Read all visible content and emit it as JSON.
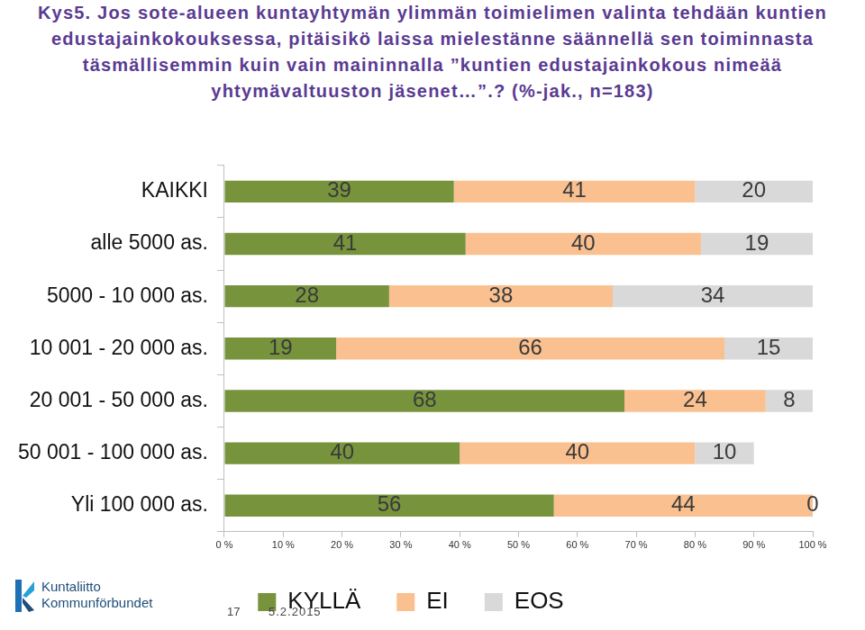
{
  "chart_data": {
    "type": "bar",
    "orientation": "horizontal",
    "stacked": true,
    "data_labels": true,
    "grid": false,
    "legend": "bottom",
    "title": "Kys5. Jos sote-alueen kuntayhtymän ylimmän toimielimen valinta tehdään kuntien edustajainkokouksessa, pitäisikö laissa mielestänne säännellä sen toiminnasta täsmällisemmin kuin vain maininnalla ”kuntien edustajainkokous nimeää yhtymävaltuuston jäsenet…”.? (%-jak., n=183)",
    "categories": [
      "KAIKKI",
      "alle 5000 as.",
      "5000 - 10 000 as.",
      "10 001 - 20 000 as.",
      "20 001 - 50 000 as.",
      "50 001 - 100 000 as.",
      "Yli 100 000 as."
    ],
    "series": [
      {
        "name": "KYLLÄ",
        "color": "#77933c",
        "values": [
          39,
          41,
          28,
          19,
          68,
          40,
          56
        ]
      },
      {
        "name": "EI",
        "color": "#fac090",
        "values": [
          41,
          40,
          38,
          66,
          24,
          40,
          44
        ]
      },
      {
        "name": "EOS",
        "color": "#d9d9d9",
        "values": [
          20,
          19,
          34,
          15,
          8,
          10,
          0
        ]
      }
    ],
    "xlim": [
      0,
      100
    ],
    "xticks": [
      {
        "value": 0,
        "label": "0 %"
      },
      {
        "value": 10,
        "label": "10 %"
      },
      {
        "value": 20,
        "label": "20 %"
      },
      {
        "value": 30,
        "label": "30 %"
      },
      {
        "value": 40,
        "label": "40 %"
      },
      {
        "value": 50,
        "label": "50 %"
      },
      {
        "value": 60,
        "label": "60 %"
      },
      {
        "value": 70,
        "label": "70 %"
      },
      {
        "value": 80,
        "label": "80 %"
      },
      {
        "value": 90,
        "label": "90 %"
      },
      {
        "value": 100,
        "label": "100 %"
      }
    ],
    "annotations": [
      "Kuntaliitto",
      "Kommunförbundet",
      "17",
      "5.2.2015"
    ]
  }
}
